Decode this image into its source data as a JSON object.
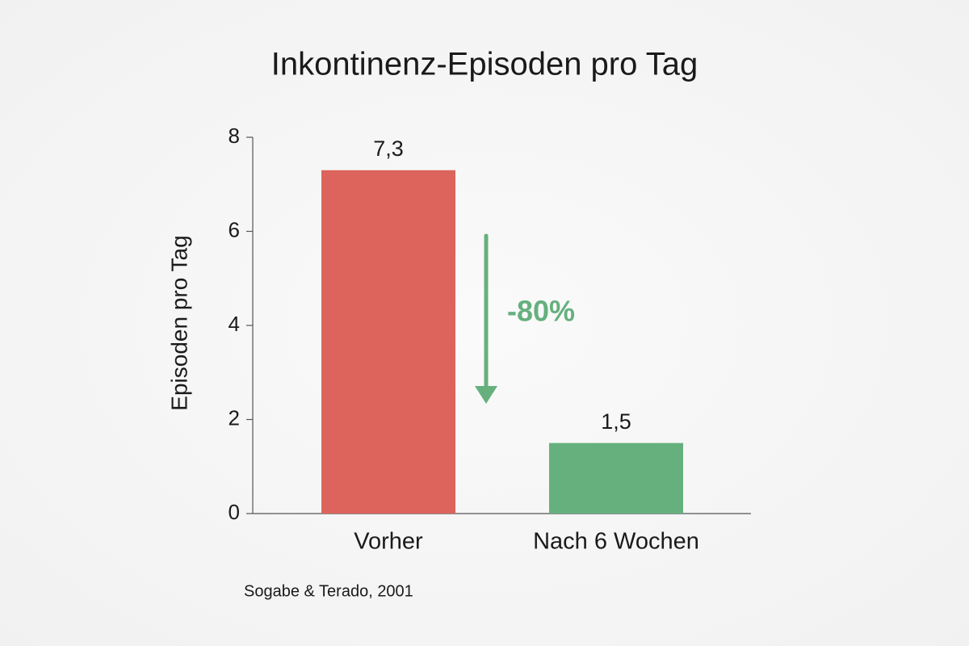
{
  "chart_data": {
    "type": "bar",
    "title": "Inkontinenz-Episoden pro Tag",
    "y_label": "Episoden pro Tag",
    "categories": [
      "Vorher",
      "Nach 6 Wochen"
    ],
    "values": [
      7.3,
      1.5
    ],
    "value_labels": [
      "7,3",
      "1,5"
    ],
    "colors": [
      "#dc645c",
      "#66b07e"
    ],
    "ylim": [
      0,
      8
    ],
    "yticks": [
      0,
      2,
      4,
      6,
      8
    ],
    "grid": false,
    "annotation": "-80%",
    "annotation_color": "#66b07e",
    "source": "Sogabe & Terado, 2001"
  }
}
